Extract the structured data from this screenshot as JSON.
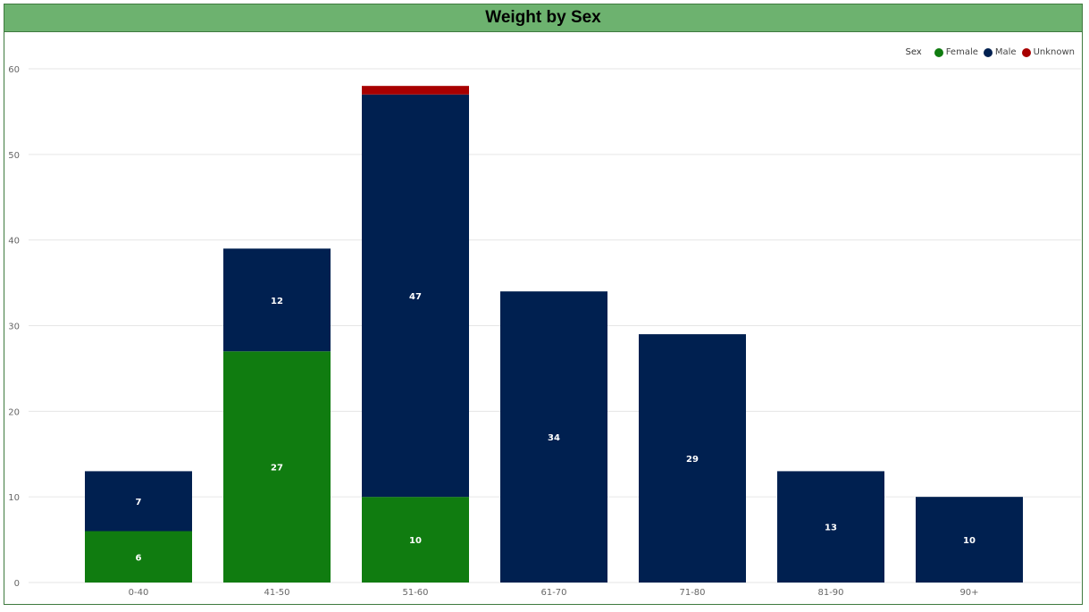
{
  "title": "Weight by Sex",
  "legend": {
    "title": "Sex",
    "items": [
      {
        "label": "Female",
        "color": "#107c10"
      },
      {
        "label": "Male",
        "color": "#002050"
      },
      {
        "label": "Unknown",
        "color": "#a80000"
      }
    ]
  },
  "chart_data": {
    "type": "bar",
    "stacked": true,
    "title": "Weight by Sex",
    "categories": [
      "0-40",
      "41-50",
      "51-60",
      "61-70",
      "71-80",
      "81-90",
      "90+"
    ],
    "series": [
      {
        "name": "Female",
        "color": "#107c10",
        "values": [
          6,
          27,
          10,
          0,
          0,
          0,
          0
        ]
      },
      {
        "name": "Male",
        "color": "#002050",
        "values": [
          7,
          12,
          47,
          34,
          29,
          13,
          10
        ]
      },
      {
        "name": "Unknown",
        "color": "#a80000",
        "values": [
          0,
          0,
          1,
          0,
          0,
          0,
          0
        ]
      }
    ],
    "data_labels": [
      {
        "category": "0-40",
        "series": "Female",
        "label": "6"
      },
      {
        "category": "0-40",
        "series": "Male",
        "label": "7"
      },
      {
        "category": "41-50",
        "series": "Female",
        "label": "27"
      },
      {
        "category": "41-50",
        "series": "Male",
        "label": "12"
      },
      {
        "category": "51-60",
        "series": "Female",
        "label": "10"
      },
      {
        "category": "51-60",
        "series": "Male",
        "label": "47"
      },
      {
        "category": "61-70",
        "series": "Male",
        "label": "34"
      },
      {
        "category": "71-80",
        "series": "Male",
        "label": "29"
      },
      {
        "category": "81-90",
        "series": "Male",
        "label": "13"
      },
      {
        "category": "90+",
        "series": "Male",
        "label": "10"
      }
    ],
    "yticks": [
      "0",
      "10",
      "20",
      "30",
      "40",
      "50",
      "60"
    ],
    "ylim": [
      0,
      60
    ],
    "grid": true,
    "legend_position": "top-right"
  }
}
